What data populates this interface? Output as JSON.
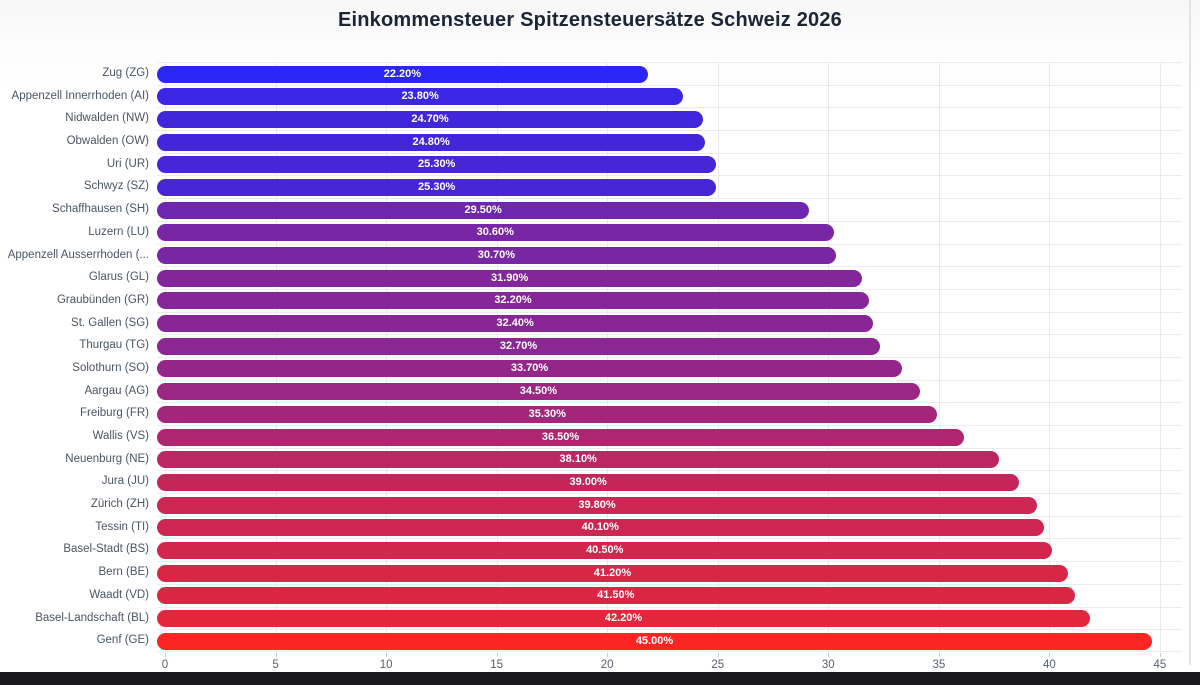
{
  "title": "Einkommensteuer Spitzensteuersätze Schweiz 2026",
  "chart_data": {
    "type": "bar",
    "orientation": "horizontal",
    "title": "Einkommensteuer Spitzensteuersätze Schweiz 2026",
    "xlabel": "",
    "ylabel": "",
    "xlim": [
      0,
      45
    ],
    "x_ticks": [
      0,
      5,
      10,
      15,
      20,
      25,
      30,
      35,
      40,
      45
    ],
    "grid": true,
    "legend": "none",
    "value_suffix": "%",
    "categories": [
      "Zug (ZG)",
      "Appenzell Innerrhoden (AI)",
      "Nidwalden (NW)",
      "Obwalden (OW)",
      "Uri (UR)",
      "Schwyz (SZ)",
      "Schaffhausen (SH)",
      "Luzern (LU)",
      "Appenzell Ausserrhoden (...",
      "Glarus (GL)",
      "Graubünden (GR)",
      "St. Gallen (SG)",
      "Thurgau (TG)",
      "Solothurn (SO)",
      "Aargau (AG)",
      "Freiburg (FR)",
      "Wallis (VS)",
      "Neuenburg (NE)",
      "Jura (JU)",
      "Zürich (ZH)",
      "Tessin (TI)",
      "Basel-Stadt (BS)",
      "Bern (BE)",
      "Waadt (VD)",
      "Basel-Landschaft (BL)",
      "Genf (GE)"
    ],
    "values": [
      22.2,
      23.8,
      24.7,
      24.8,
      25.3,
      25.3,
      29.5,
      30.6,
      30.7,
      31.9,
      32.2,
      32.4,
      32.7,
      33.7,
      34.5,
      35.3,
      36.5,
      38.1,
      39.0,
      39.8,
      40.1,
      40.5,
      41.2,
      41.5,
      42.2,
      45.0
    ],
    "value_labels": [
      "22.20%",
      "23.80%",
      "24.70%",
      "24.80%",
      "25.30%",
      "25.30%",
      "29.50%",
      "30.60%",
      "30.70%",
      "31.90%",
      "32.20%",
      "32.40%",
      "32.70%",
      "33.70%",
      "34.50%",
      "35.30%",
      "36.50%",
      "38.10%",
      "39.00%",
      "39.80%",
      "40.10%",
      "40.50%",
      "41.20%",
      "41.50%",
      "42.20%",
      "45.00%"
    ],
    "bar_colors": [
      "#2b26f3",
      "#3a26e4",
      "#4226dc",
      "#4326db",
      "#4726d7",
      "#4726d7",
      "#6e26b0",
      "#7826a6",
      "#7926a5",
      "#84269b",
      "#862698",
      "#882696",
      "#8b2693",
      "#94268a",
      "#9b2683",
      "#a3267b",
      "#ae2670",
      "#bc2662",
      "#c4265a",
      "#cc2652",
      "#ce2650",
      "#d2264c",
      "#d82646",
      "#db2643",
      "#e2263c",
      "#fb2623"
    ],
    "color_scale": {
      "low": "#2b26f3",
      "high": "#fb2623"
    }
  },
  "colors": {
    "title_text": "#1c2533",
    "category_label_text": "#4b5563",
    "axis_tick_text": "#566070",
    "gridline": "#ececee",
    "value_label_text": "#ffffff",
    "bottom_bar": "#1a1a1c"
  }
}
